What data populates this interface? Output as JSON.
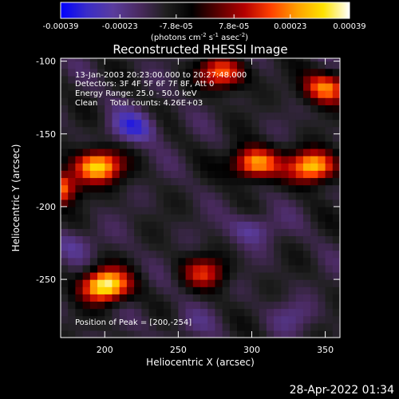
{
  "chart_data": {
    "type": "heatmap",
    "title": "Reconstructed RHESSI Image",
    "xlabel": "Heliocentric X (arcsec)",
    "ylabel": "Heliocentric Y (arcsec)",
    "xlim": [
      170,
      360
    ],
    "ylim": [
      -290,
      -98
    ],
    "x_ticks": [
      200,
      250,
      300,
      350
    ],
    "y_ticks": [
      -100,
      -150,
      -200,
      -250
    ],
    "colorbar": {
      "label": "(photons cm",
      "label_exp1": "-2",
      "label_mid": " s",
      "label_exp2": "-1",
      "label_mid2": " asec",
      "label_exp3": "-2",
      "label_end": ")",
      "min": -0.00039,
      "max": 0.00039,
      "ticks": [
        -0.00039,
        -0.00023,
        -7.8e-05,
        7.8e-05,
        0.00023,
        0.00039
      ],
      "tick_labels": [
        "-0.00039",
        "-0.00023",
        "-7.8e-05",
        "7.8e-05",
        "0.00023",
        "0.00039"
      ],
      "stops": [
        "#0000ff",
        "#3a2cc8",
        "#5a3c9e",
        "#4a2a60",
        "#202020",
        "#000000",
        "#5a0000",
        "#b40000",
        "#ff4000",
        "#ffa000",
        "#ffe200",
        "#ffffff"
      ]
    },
    "bright_sources": [
      {
        "x": 200,
        "y": -254,
        "value": 0.00039
      },
      {
        "x": 165,
        "y": -187,
        "value": 0.0003
      },
      {
        "x": 195,
        "y": -172,
        "value": 0.00033
      },
      {
        "x": 302,
        "y": -170,
        "value": 0.00028
      },
      {
        "x": 342,
        "y": -172,
        "value": 0.00032
      },
      {
        "x": 280,
        "y": -108,
        "value": 0.0002
      },
      {
        "x": 350,
        "y": -118,
        "value": 0.00022
      },
      {
        "x": 268,
        "y": -245,
        "value": 0.00012
      }
    ],
    "dark_regions": [
      {
        "x": 220,
        "y": -145,
        "value": -0.0003
      },
      {
        "x": 300,
        "y": -215,
        "value": -0.00025
      },
      {
        "x": 180,
        "y": -225,
        "value": -0.00022
      },
      {
        "x": 330,
        "y": -275,
        "value": -0.0002
      },
      {
        "x": 255,
        "y": -280,
        "value": -0.00018
      }
    ]
  },
  "annotations": {
    "time_range": "13-Jan-2003 20:23:00.000 to 20:27:48.000",
    "detectors": "Detectors: 3F 4F 5F 6F 7F 8F, Att 0",
    "energy": "Energy Range: 25.0 - 50.0 keV",
    "clean": "Clean",
    "total_counts": "Total counts: 4.26E+03",
    "peak": "Position of Peak = [200,-254]"
  },
  "footer": {
    "timestamp": "28-Apr-2022 01:34"
  }
}
